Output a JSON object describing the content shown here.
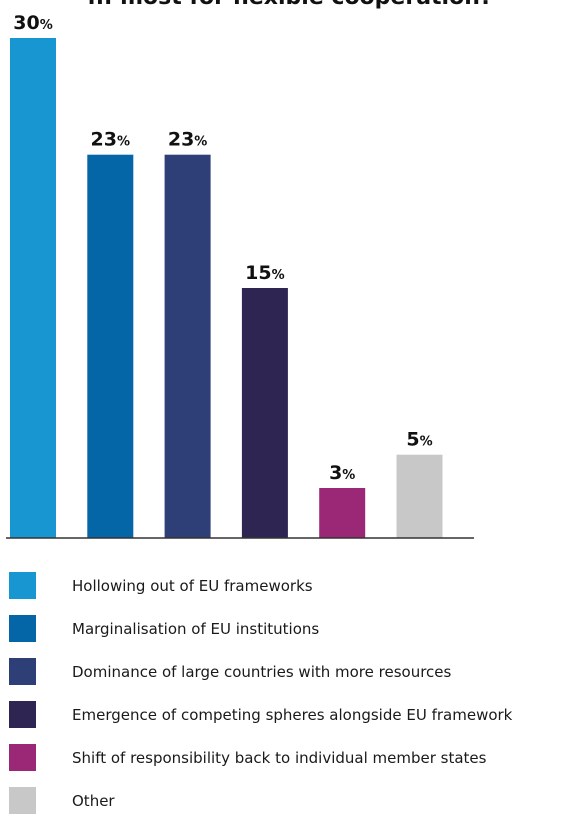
{
  "chart_data": {
    "type": "bar",
    "title": "... most for flexible cooperation?",
    "categories": [
      "Hollowing out of EU frameworks",
      "Marginalisation of EU institutions",
      "Dominance of large countries with more resources",
      "Emergence of competing spheres alongside EU framework",
      "Shift of responsibility back to individual member states",
      "Other"
    ],
    "values": [
      30,
      23,
      23,
      15,
      3,
      5
    ],
    "value_suffix": "%",
    "colors": [
      "#1796d2",
      "#0466a6",
      "#2e3e76",
      "#2e2553",
      "#9b2777",
      "#c8c8c8"
    ],
    "ylim": [
      0,
      30
    ],
    "xlabel": "",
    "ylabel": "",
    "grid": false,
    "legend_position": "bottom"
  }
}
